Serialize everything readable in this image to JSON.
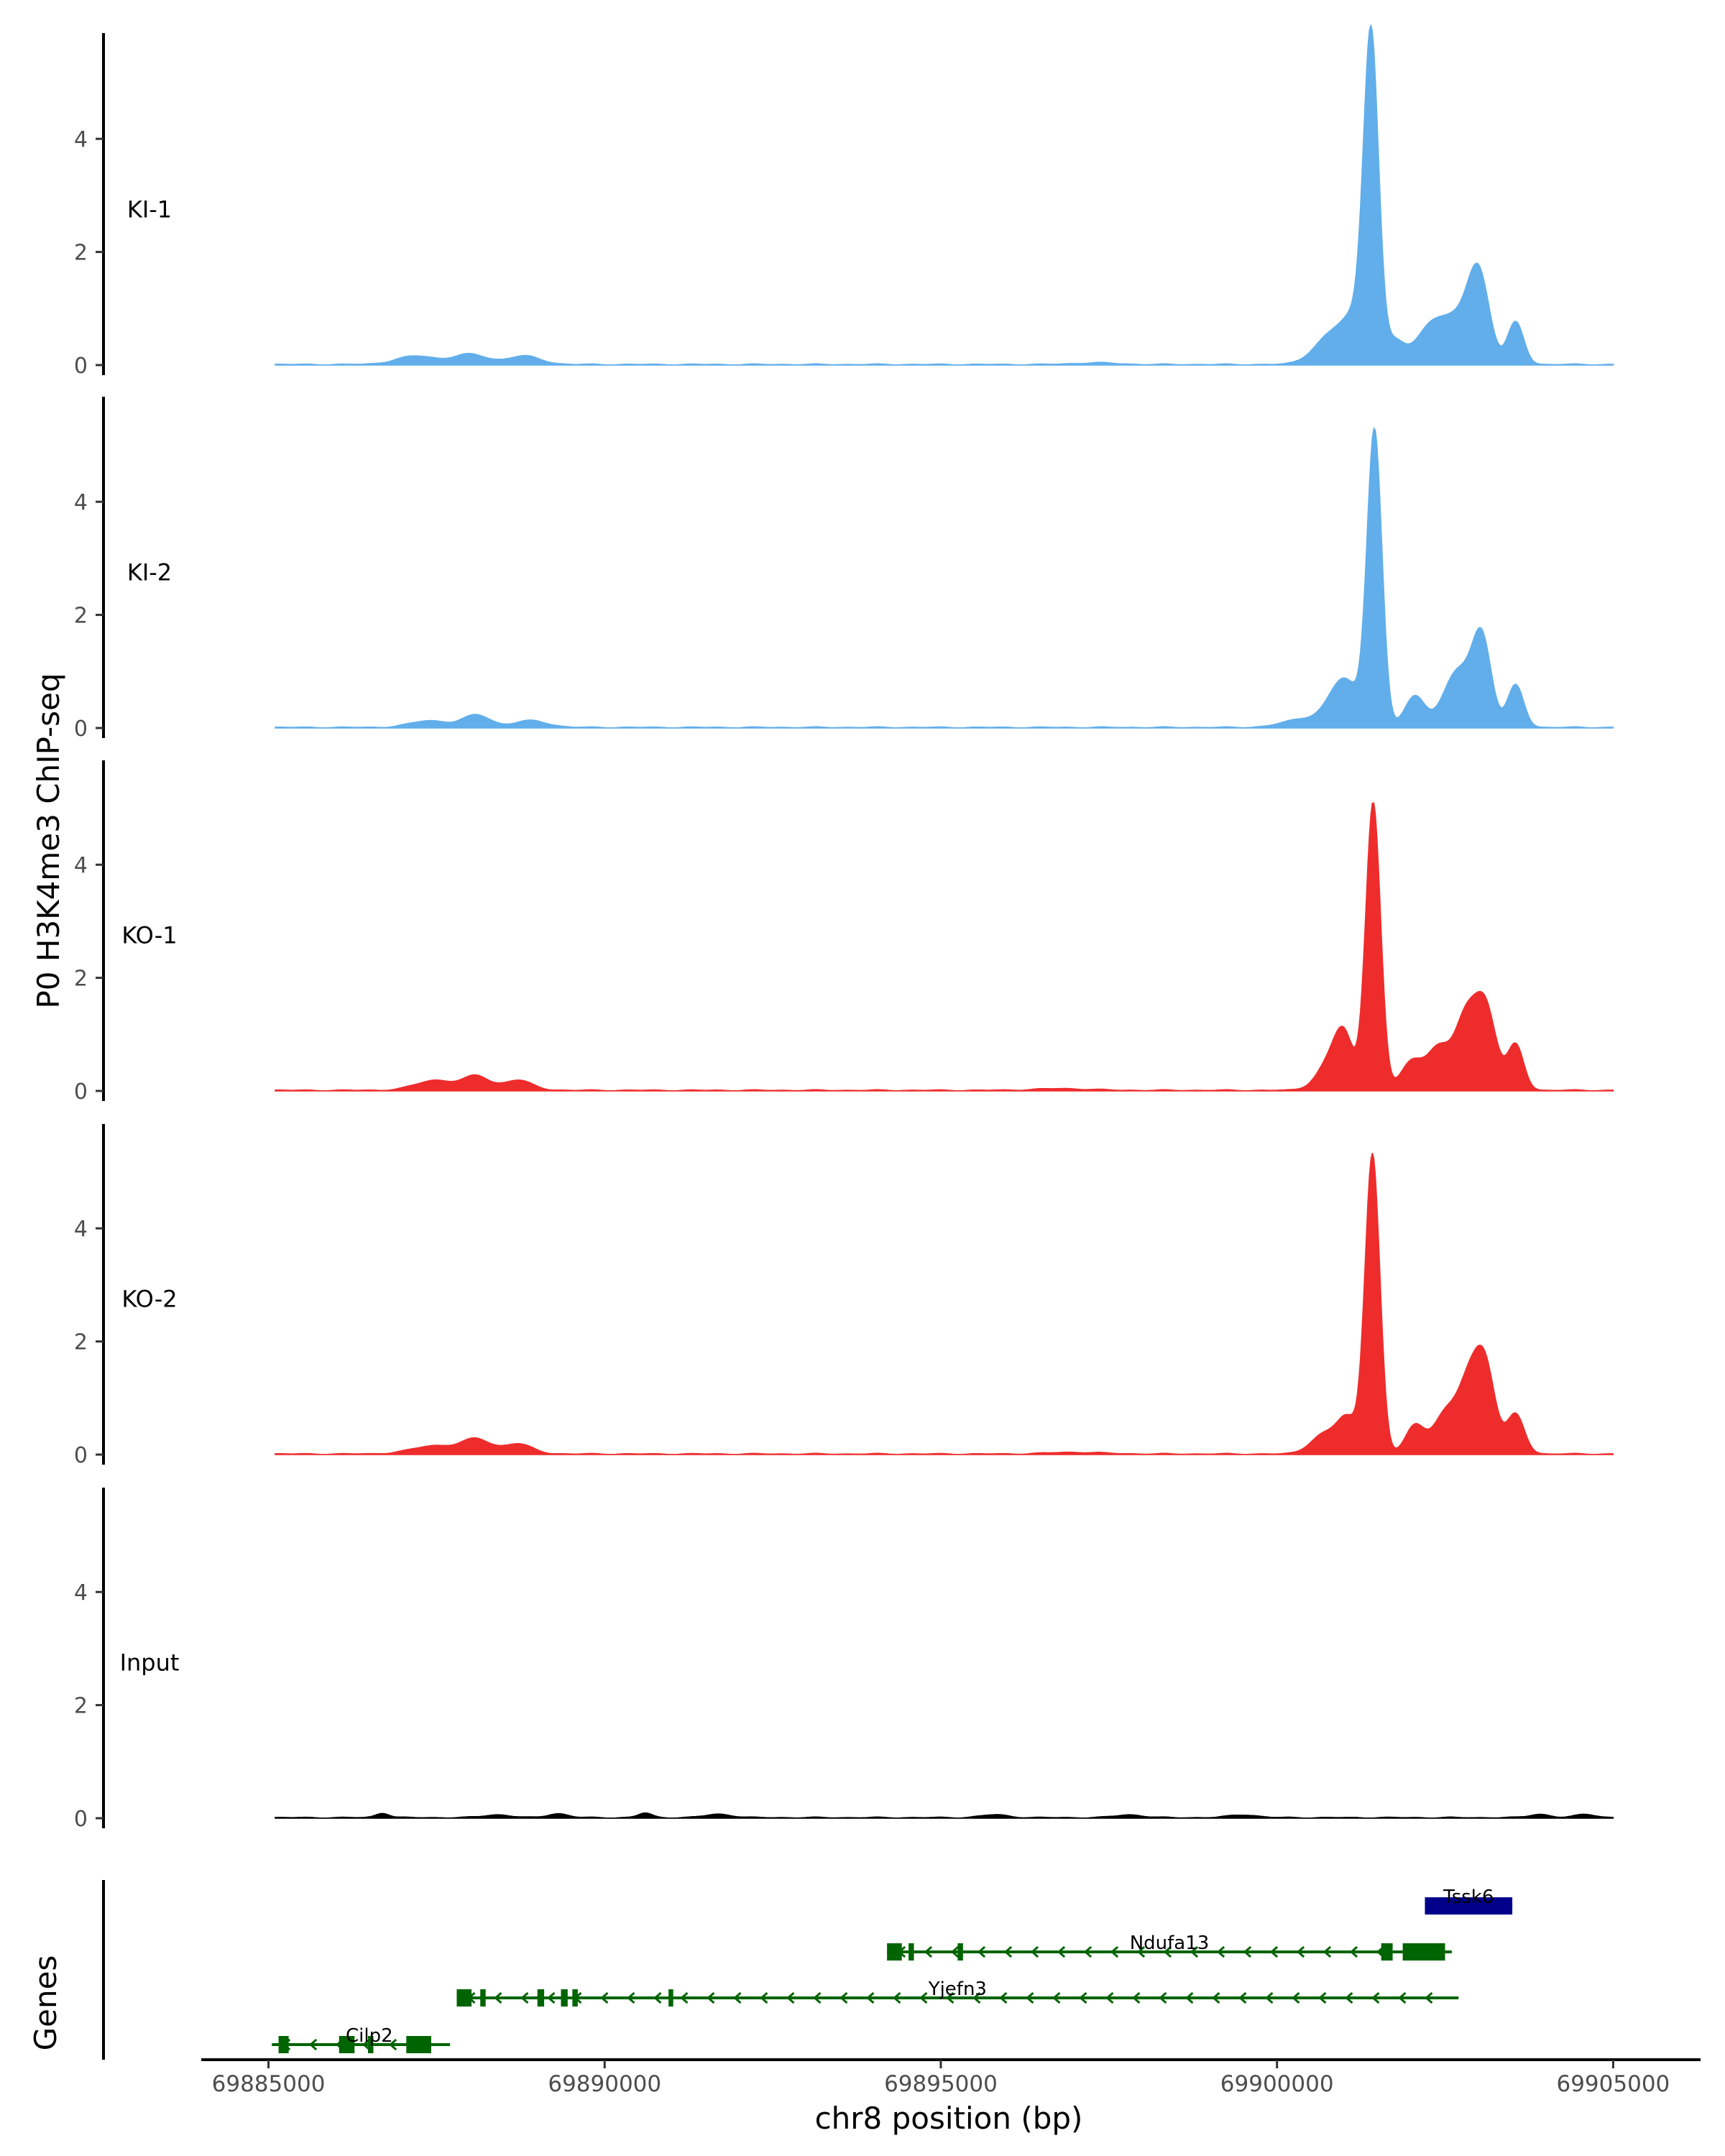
{
  "chart_data": {
    "type": "area",
    "ylabel": "P0 H3K4me3 ChIP-seq",
    "xlabel": "chr8 position (bp)",
    "genes_label": "Genes",
    "xlim": [
      69884000,
      69906300
    ],
    "ylim": [
      0,
      5.8
    ],
    "y_ticks": [
      0,
      2,
      4
    ],
    "x_ticks": [
      69885000,
      69890000,
      69895000,
      69900000,
      69905000
    ],
    "x_tick_labels": [
      "69885000",
      "69890000",
      "69895000",
      "69900000",
      "69905000"
    ],
    "tracks": [
      {
        "name": "KI-1",
        "color": "#61aeeb",
        "peaks": [
          [
            69887200,
            0.15,
            300
          ],
          [
            69888000,
            0.18,
            250
          ],
          [
            69888800,
            0.15,
            250
          ],
          [
            69897300,
            0.03,
            300
          ],
          [
            69900800,
            0.5,
            250
          ],
          [
            69901200,
            0.75,
            200
          ],
          [
            69901400,
            5.5,
            110
          ],
          [
            69901750,
            0.4,
            150
          ],
          [
            69902300,
            0.7,
            220
          ],
          [
            69902700,
            0.65,
            200
          ],
          [
            69903000,
            1.55,
            160
          ],
          [
            69903550,
            0.75,
            120
          ]
        ]
      },
      {
        "name": "KI-2",
        "color": "#61aeeb",
        "peaks": [
          [
            69887400,
            0.12,
            280
          ],
          [
            69888100,
            0.22,
            200
          ],
          [
            69888900,
            0.12,
            250
          ],
          [
            69900400,
            0.15,
            300
          ],
          [
            69901000,
            0.85,
            220
          ],
          [
            69901450,
            5.2,
            110
          ],
          [
            69902050,
            0.55,
            150
          ],
          [
            69902700,
            1.0,
            220
          ],
          [
            69903050,
            1.45,
            140
          ],
          [
            69903550,
            0.75,
            120
          ]
        ]
      },
      {
        "name": "KO-1",
        "color": "#ee2c2c",
        "peaks": [
          [
            69887500,
            0.18,
            300
          ],
          [
            69888100,
            0.24,
            180
          ],
          [
            69888700,
            0.18,
            220
          ],
          [
            69896800,
            0.03,
            400
          ],
          [
            69900800,
            0.5,
            200
          ],
          [
            69901000,
            0.8,
            140
          ],
          [
            69901430,
            5.1,
            110
          ],
          [
            69902000,
            0.5,
            160
          ],
          [
            69902400,
            0.75,
            170
          ],
          [
            69902800,
            1.2,
            160
          ],
          [
            69903100,
            1.45,
            160
          ],
          [
            69903550,
            0.8,
            120
          ]
        ]
      },
      {
        "name": "KO-2",
        "color": "#ee2c2c",
        "peaks": [
          [
            69887500,
            0.15,
            350
          ],
          [
            69888100,
            0.24,
            200
          ],
          [
            69888700,
            0.18,
            220
          ],
          [
            69897000,
            0.03,
            400
          ],
          [
            69900700,
            0.35,
            200
          ],
          [
            69901050,
            0.6,
            150
          ],
          [
            69901420,
            5.3,
            110
          ],
          [
            69902050,
            0.5,
            140
          ],
          [
            69902500,
            0.7,
            180
          ],
          [
            69902850,
            1.15,
            160
          ],
          [
            69903100,
            1.45,
            150
          ],
          [
            69903550,
            0.7,
            130
          ]
        ]
      },
      {
        "name": "Input",
        "color": "#000000",
        "peaks": [
          [
            69886700,
            0.08,
            100
          ],
          [
            69888400,
            0.05,
            200
          ],
          [
            69889300,
            0.07,
            150
          ],
          [
            69890600,
            0.08,
            100
          ],
          [
            69891700,
            0.06,
            200
          ],
          [
            69895800,
            0.05,
            200
          ],
          [
            69897800,
            0.05,
            200
          ],
          [
            69899500,
            0.05,
            200
          ],
          [
            69903900,
            0.06,
            150
          ],
          [
            69904600,
            0.06,
            150
          ]
        ]
      }
    ],
    "genes": [
      {
        "name": "Tssk6",
        "color": "#00008b",
        "strand": "-",
        "start": 69902200,
        "end": 69903500,
        "exons": [
          [
            69902200,
            69903500
          ]
        ],
        "row": 4
      },
      {
        "name": "Ndufa13",
        "color": "#006400",
        "strand": "-",
        "start": 69894200,
        "end": 69902600,
        "exons": [
          [
            69894200,
            69894420
          ],
          [
            69894520,
            69894600
          ],
          [
            69895250,
            69895330
          ],
          [
            69901550,
            69901720
          ],
          [
            69901870,
            69902500
          ]
        ],
        "row": 3
      },
      {
        "name": "Yjefn3",
        "color": "#006400",
        "strand": "-",
        "start": 69887800,
        "end": 69902700,
        "exons": [
          [
            69887800,
            69888020
          ],
          [
            69888150,
            69888230
          ],
          [
            69889000,
            69889100
          ],
          [
            69889350,
            69889450
          ],
          [
            69889520,
            69889600
          ],
          [
            69890950,
            69891020
          ]
        ],
        "row": 2
      },
      {
        "name": "Cilp2",
        "color": "#006400",
        "strand": "-",
        "start": 69885050,
        "end": 69887700,
        "exons": [
          [
            69885150,
            69885300
          ],
          [
            69886050,
            69886280
          ],
          [
            69886480,
            69886560
          ],
          [
            69887050,
            69887420
          ]
        ],
        "row": 1
      }
    ]
  }
}
